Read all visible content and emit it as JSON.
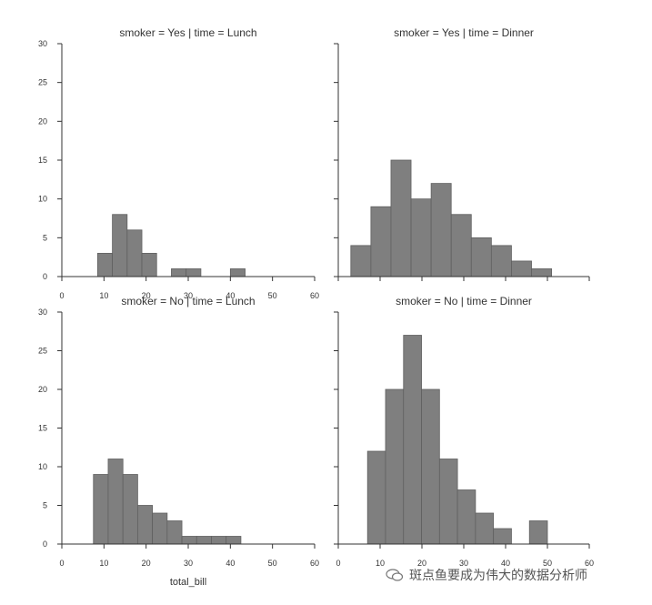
{
  "chart_data": [
    {
      "type": "bar",
      "title": "smoker = Yes | time = Lunch",
      "x_ticks": [
        "0",
        "10",
        "20",
        "30",
        "40",
        "50",
        "60"
      ],
      "y_ticks": [
        "0",
        "5",
        "10",
        "15",
        "20",
        "25",
        "30"
      ],
      "xlim": [
        0,
        60
      ],
      "ylim": [
        0,
        30
      ],
      "xlabel": "",
      "ylabel": "",
      "bins": [
        {
          "x0": 8.5,
          "x1": 12.0,
          "count": 3
        },
        {
          "x0": 12.0,
          "x1": 15.5,
          "count": 8
        },
        {
          "x0": 15.5,
          "x1": 19.0,
          "count": 6
        },
        {
          "x0": 19.0,
          "x1": 22.5,
          "count": 3
        },
        {
          "x0": 22.5,
          "x1": 26.0,
          "count": 0
        },
        {
          "x0": 26.0,
          "x1": 29.5,
          "count": 1
        },
        {
          "x0": 29.5,
          "x1": 33.0,
          "count": 1
        },
        {
          "x0": 33.0,
          "x1": 36.5,
          "count": 0
        },
        {
          "x0": 36.5,
          "x1": 40.0,
          "count": 0
        },
        {
          "x0": 40.0,
          "x1": 43.5,
          "count": 1
        }
      ]
    },
    {
      "type": "bar",
      "title": "smoker = Yes | time = Dinner",
      "x_ticks": [],
      "y_ticks": [],
      "xlim": [
        0,
        60
      ],
      "ylim": [
        0,
        30
      ],
      "xlabel": "",
      "ylabel": "",
      "bins": [
        {
          "x0": 3.0,
          "x1": 7.8,
          "count": 4
        },
        {
          "x0": 7.8,
          "x1": 12.6,
          "count": 9
        },
        {
          "x0": 12.6,
          "x1": 17.4,
          "count": 15
        },
        {
          "x0": 17.4,
          "x1": 22.2,
          "count": 10
        },
        {
          "x0": 22.2,
          "x1": 27.0,
          "count": 12
        },
        {
          "x0": 27.0,
          "x1": 31.8,
          "count": 8
        },
        {
          "x0": 31.8,
          "x1": 36.6,
          "count": 5
        },
        {
          "x0": 36.6,
          "x1": 41.4,
          "count": 4
        },
        {
          "x0": 41.4,
          "x1": 46.2,
          "count": 2
        },
        {
          "x0": 46.2,
          "x1": 51.0,
          "count": 1
        }
      ]
    },
    {
      "type": "bar",
      "title": "smoker = No | time = Lunch",
      "x_ticks": [
        "0",
        "10",
        "20",
        "30",
        "40",
        "50",
        "60"
      ],
      "y_ticks": [
        "0",
        "5",
        "10",
        "15",
        "20",
        "25",
        "30"
      ],
      "xlim": [
        0,
        60
      ],
      "ylim": [
        0,
        30
      ],
      "xlabel": "total_bill",
      "ylabel": "",
      "bins": [
        {
          "x0": 7.5,
          "x1": 11.0,
          "count": 9
        },
        {
          "x0": 11.0,
          "x1": 14.5,
          "count": 11
        },
        {
          "x0": 14.5,
          "x1": 18.0,
          "count": 9
        },
        {
          "x0": 18.0,
          "x1": 21.5,
          "count": 5
        },
        {
          "x0": 21.5,
          "x1": 25.0,
          "count": 4
        },
        {
          "x0": 25.0,
          "x1": 28.5,
          "count": 3
        },
        {
          "x0": 28.5,
          "x1": 32.0,
          "count": 1
        },
        {
          "x0": 32.0,
          "x1": 35.5,
          "count": 1
        },
        {
          "x0": 35.5,
          "x1": 39.0,
          "count": 1
        },
        {
          "x0": 39.0,
          "x1": 42.5,
          "count": 1
        }
      ]
    },
    {
      "type": "bar",
      "title": "smoker = No | time = Dinner",
      "x_ticks": [
        "0",
        "10",
        "20",
        "30",
        "40",
        "50",
        "60"
      ],
      "y_ticks": [],
      "xlim": [
        0,
        60
      ],
      "ylim": [
        0,
        30
      ],
      "xlabel": "",
      "ylabel": "",
      "bins": [
        {
          "x0": 7.0,
          "x1": 11.3,
          "count": 12
        },
        {
          "x0": 11.3,
          "x1": 15.6,
          "count": 20
        },
        {
          "x0": 15.6,
          "x1": 19.9,
          "count": 27
        },
        {
          "x0": 19.9,
          "x1": 24.2,
          "count": 20
        },
        {
          "x0": 24.2,
          "x1": 28.5,
          "count": 11
        },
        {
          "x0": 28.5,
          "x1": 32.8,
          "count": 7
        },
        {
          "x0": 32.8,
          "x1": 37.1,
          "count": 4
        },
        {
          "x0": 37.1,
          "x1": 41.4,
          "count": 2
        },
        {
          "x0": 41.4,
          "x1": 45.7,
          "count": 0
        },
        {
          "x0": 45.7,
          "x1": 50.0,
          "count": 3
        }
      ]
    }
  ],
  "style": {
    "bar_fill": "#7f7f7f",
    "bar_edge": "#606060",
    "axis_color": "#333333"
  },
  "watermark": {
    "icon": "wechat-icon",
    "text": "斑点鱼要成为伟大的数据分析师"
  }
}
